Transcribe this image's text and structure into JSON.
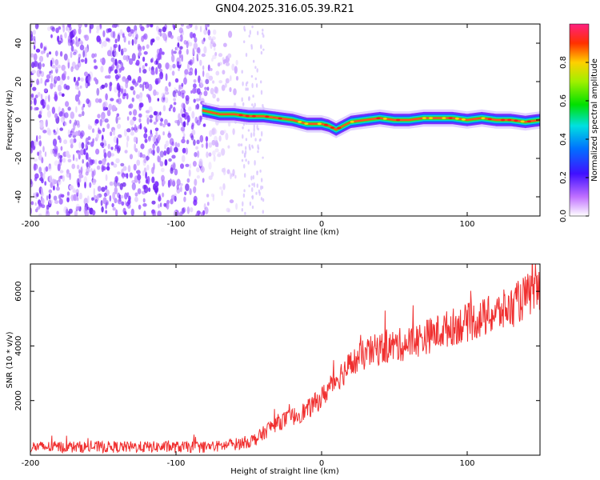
{
  "title": "GN04.2025.316.05.39.R21",
  "chart_data": [
    {
      "type": "heatmap",
      "title": "GN04.2025.316.05.39.R21",
      "xlabel": "Height of straight line (km)",
      "ylabel": "Frequency (Hz)",
      "xlim": [
        -200,
        150
      ],
      "ylim": [
        -50,
        50
      ],
      "x_ticks": [
        -200,
        -100,
        0,
        100
      ],
      "y_ticks": [
        -40,
        -20,
        0,
        20,
        40
      ],
      "colorbar": {
        "label": "Normalized spectral amplitude",
        "range": [
          0,
          1
        ],
        "ticks": [
          "0.0",
          "0.2",
          "0.4",
          "0.6",
          "0.8"
        ],
        "tick_values": [
          0,
          0.2,
          0.4,
          0.6,
          0.8
        ]
      },
      "noise_region_x": [
        -200,
        -55
      ],
      "ridge": {
        "x": [
          -82,
          -70,
          -60,
          -50,
          -40,
          -30,
          -20,
          -10,
          0,
          5,
          10,
          15,
          20,
          30,
          40,
          50,
          60,
          70,
          80,
          90,
          100,
          110,
          120,
          130,
          140,
          150
        ],
        "frequency": [
          5,
          3,
          3,
          2,
          2,
          1,
          0,
          -2,
          -2,
          -3,
          -5,
          -3,
          -1,
          0,
          1,
          0,
          0,
          1,
          1,
          1,
          0,
          1,
          0,
          0,
          -1,
          0
        ]
      }
    },
    {
      "type": "line",
      "series": [
        {
          "name": "SNR",
          "color": "#f03030",
          "x": [
            -200,
            -150,
            -100,
            -80,
            -70,
            -60,
            -50,
            -45,
            -40,
            -35,
            -30,
            -20,
            -10,
            0,
            10,
            20,
            30,
            40,
            50,
            60,
            70,
            80,
            90,
            100,
            110,
            120,
            130,
            140,
            150
          ],
          "values": [
            300,
            300,
            300,
            300,
            330,
            400,
            500,
            600,
            800,
            1050,
            1200,
            1400,
            1650,
            2100,
            2800,
            3300,
            3700,
            3900,
            4000,
            4100,
            4300,
            4500,
            4700,
            4850,
            5000,
            5200,
            5400,
            5800,
            6100
          ]
        }
      ],
      "xlabel": "Height of straight line (km)",
      "ylabel": "SNR (10 * v/v)",
      "xlim": [
        -200,
        150
      ],
      "ylim": [
        0,
        7000
      ],
      "x_ticks": [
        -200,
        -100,
        0,
        100
      ],
      "y_ticks": [
        2000,
        4000,
        6000
      ]
    }
  ]
}
